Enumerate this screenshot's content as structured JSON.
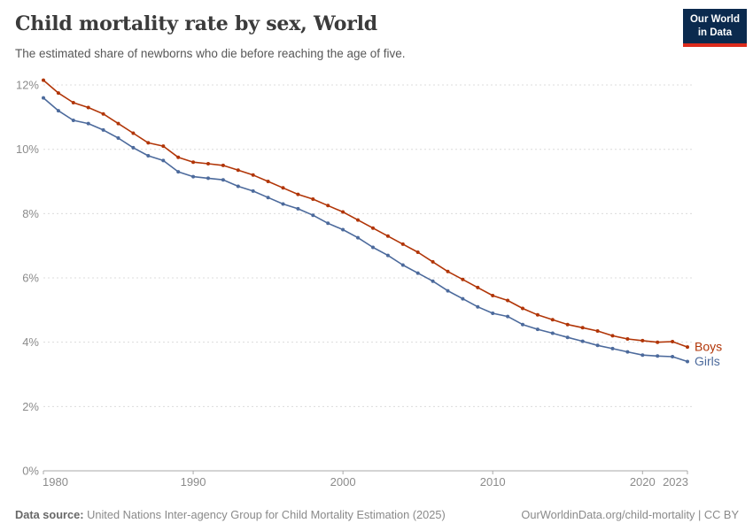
{
  "header": {
    "title": "Child mortality rate by sex, World",
    "subtitle": "The estimated share of newborns who die before reaching the age of five.",
    "logo_line1": "Our World",
    "logo_line2": "in Data"
  },
  "chart_data": {
    "type": "line",
    "title": "Child mortality rate by sex, World",
    "xlabel": "",
    "ylabel": "",
    "x": [
      1980,
      1981,
      1982,
      1983,
      1984,
      1985,
      1986,
      1987,
      1988,
      1989,
      1990,
      1991,
      1992,
      1993,
      1994,
      1995,
      1996,
      1997,
      1998,
      1999,
      2000,
      2001,
      2002,
      2003,
      2004,
      2005,
      2006,
      2007,
      2008,
      2009,
      2010,
      2011,
      2012,
      2013,
      2014,
      2015,
      2016,
      2017,
      2018,
      2019,
      2020,
      2021,
      2022,
      2023
    ],
    "series": [
      {
        "name": "Boys",
        "color": "#b13507",
        "values": [
          12.15,
          11.75,
          11.45,
          11.3,
          11.1,
          10.8,
          10.5,
          10.2,
          10.1,
          9.75,
          9.6,
          9.55,
          9.5,
          9.35,
          9.2,
          9.0,
          8.8,
          8.6,
          8.45,
          8.25,
          8.05,
          7.8,
          7.55,
          7.3,
          7.05,
          6.8,
          6.5,
          6.2,
          5.95,
          5.7,
          5.45,
          5.3,
          5.05,
          4.85,
          4.7,
          4.55,
          4.45,
          4.35,
          4.2,
          4.1,
          4.05,
          4.0,
          4.02,
          3.85
        ]
      },
      {
        "name": "Girls",
        "color": "#4c6a9c",
        "values": [
          11.6,
          11.2,
          10.9,
          10.8,
          10.6,
          10.35,
          10.05,
          9.8,
          9.65,
          9.3,
          9.15,
          9.1,
          9.05,
          8.85,
          8.7,
          8.5,
          8.3,
          8.15,
          7.95,
          7.7,
          7.5,
          7.25,
          6.95,
          6.7,
          6.4,
          6.15,
          5.9,
          5.6,
          5.35,
          5.1,
          4.9,
          4.8,
          4.55,
          4.4,
          4.28,
          4.15,
          4.03,
          3.9,
          3.8,
          3.7,
          3.6,
          3.57,
          3.55,
          3.4
        ]
      }
    ],
    "ylim": [
      0,
      12
    ],
    "yticks": [
      0,
      2,
      4,
      6,
      8,
      10,
      12
    ],
    "ytick_suffix": "%",
    "xticks": [
      1980,
      1990,
      2000,
      2010,
      2020,
      2023
    ],
    "grid": "horizontal-dashed",
    "legend": "line-end-labels",
    "marker": "dot"
  },
  "footer": {
    "datasource_label": "Data source:",
    "datasource_text": " United Nations Inter-agency Group for Child Mortality Estimation (2025)",
    "rights": "OurWorldinData.org/child-mortality | CC BY"
  }
}
